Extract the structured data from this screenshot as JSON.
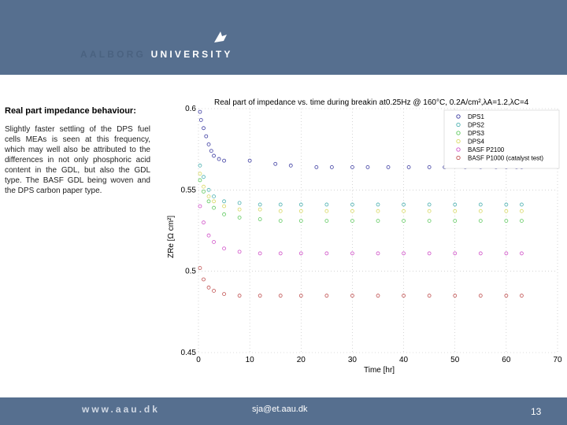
{
  "header": {
    "logo_text_faded": "AALBORG",
    "logo_text": "UNIVERSITY"
  },
  "sidebar": {
    "title": "Real part impedance behaviour:",
    "body": "Slightly faster settling of the DPS fuel cells MEAs is seen at this frequency, which may well also be attributed to the differences in not only phosphoric acid content in the GDL, but also the GDL type. The BASF GDL being woven and the DPS carbon paper type."
  },
  "footer": {
    "url": "www.aau.dk",
    "email": "sja@et.aau.dk",
    "page": "13"
  },
  "chart_data": {
    "type": "scatter",
    "title": "Real part of impedance vs. time during breakin at0.25Hz @ 160°C, 0.2A/cm²,λA=1.2,λC=4",
    "xlabel": "Time [hr]",
    "ylabel": "ZRe [Ω cm²]",
    "xlim": [
      0,
      70
    ],
    "ylim": [
      0.45,
      0.6
    ],
    "xticks": [
      "0",
      "10",
      "20",
      "30",
      "40",
      "50",
      "60",
      "70"
    ],
    "yticks": [
      "0.45",
      "0.5",
      "0.55",
      "0.6"
    ],
    "grid": true,
    "legend_position": "top-right",
    "marker": "circle-open",
    "series": [
      {
        "name": "DPS1",
        "color": "#3a3aa0",
        "x": [
          0.3,
          0.5,
          1,
          1.5,
          2,
          2.5,
          3,
          4,
          5,
          10,
          15,
          18,
          23,
          26,
          30,
          33,
          37,
          41,
          45,
          48,
          52,
          55,
          58,
          60,
          62,
          63
        ],
        "y": [
          0.598,
          0.593,
          0.588,
          0.583,
          0.578,
          0.574,
          0.571,
          0.569,
          0.568,
          0.568,
          0.566,
          0.565,
          0.564,
          0.564,
          0.564,
          0.564,
          0.564,
          0.564,
          0.564,
          0.564,
          0.564,
          0.564,
          0.564,
          0.564,
          0.564,
          0.564
        ]
      },
      {
        "name": "DPS2",
        "color": "#4ab0b0",
        "x": [
          0.3,
          1,
          2,
          3,
          5,
          8,
          12,
          16,
          20,
          25,
          30,
          35,
          40,
          45,
          50,
          55,
          60,
          63
        ],
        "y": [
          0.565,
          0.558,
          0.55,
          0.546,
          0.543,
          0.542,
          0.541,
          0.541,
          0.541,
          0.541,
          0.541,
          0.541,
          0.541,
          0.541,
          0.541,
          0.541,
          0.541,
          0.541
        ]
      },
      {
        "name": "DPS3",
        "color": "#5cc85c",
        "x": [
          0.3,
          1,
          2,
          3,
          5,
          8,
          12,
          16,
          20,
          25,
          30,
          35,
          40,
          45,
          50,
          55,
          60,
          63
        ],
        "y": [
          0.556,
          0.549,
          0.543,
          0.539,
          0.535,
          0.533,
          0.532,
          0.531,
          0.531,
          0.531,
          0.531,
          0.531,
          0.531,
          0.531,
          0.531,
          0.531,
          0.531,
          0.531
        ]
      },
      {
        "name": "DPS4",
        "color": "#d8d860",
        "x": [
          0.3,
          1,
          2,
          3,
          5,
          8,
          12,
          16,
          20,
          25,
          30,
          35,
          40,
          45,
          50,
          55,
          60,
          63
        ],
        "y": [
          0.56,
          0.552,
          0.546,
          0.543,
          0.54,
          0.538,
          0.538,
          0.537,
          0.537,
          0.537,
          0.537,
          0.537,
          0.537,
          0.537,
          0.537,
          0.537,
          0.537,
          0.537
        ]
      },
      {
        "name": "BASF P2100",
        "color": "#d050c8",
        "x": [
          0.3,
          1,
          2,
          3,
          5,
          8,
          12,
          16,
          20,
          25,
          30,
          35,
          40,
          45,
          50,
          55,
          60,
          63
        ],
        "y": [
          0.54,
          0.53,
          0.522,
          0.518,
          0.514,
          0.512,
          0.511,
          0.511,
          0.511,
          0.511,
          0.511,
          0.511,
          0.511,
          0.511,
          0.511,
          0.511,
          0.511,
          0.511
        ]
      },
      {
        "name": "BASF P1000 (catalyst test)",
        "color": "#c05050",
        "x": [
          0.3,
          1,
          2,
          3,
          5,
          8,
          12,
          16,
          20,
          25,
          30,
          35,
          40,
          45,
          50,
          55,
          60,
          63
        ],
        "y": [
          0.502,
          0.495,
          0.49,
          0.488,
          0.486,
          0.485,
          0.485,
          0.485,
          0.485,
          0.485,
          0.485,
          0.485,
          0.485,
          0.485,
          0.485,
          0.485,
          0.485,
          0.485
        ]
      }
    ]
  }
}
